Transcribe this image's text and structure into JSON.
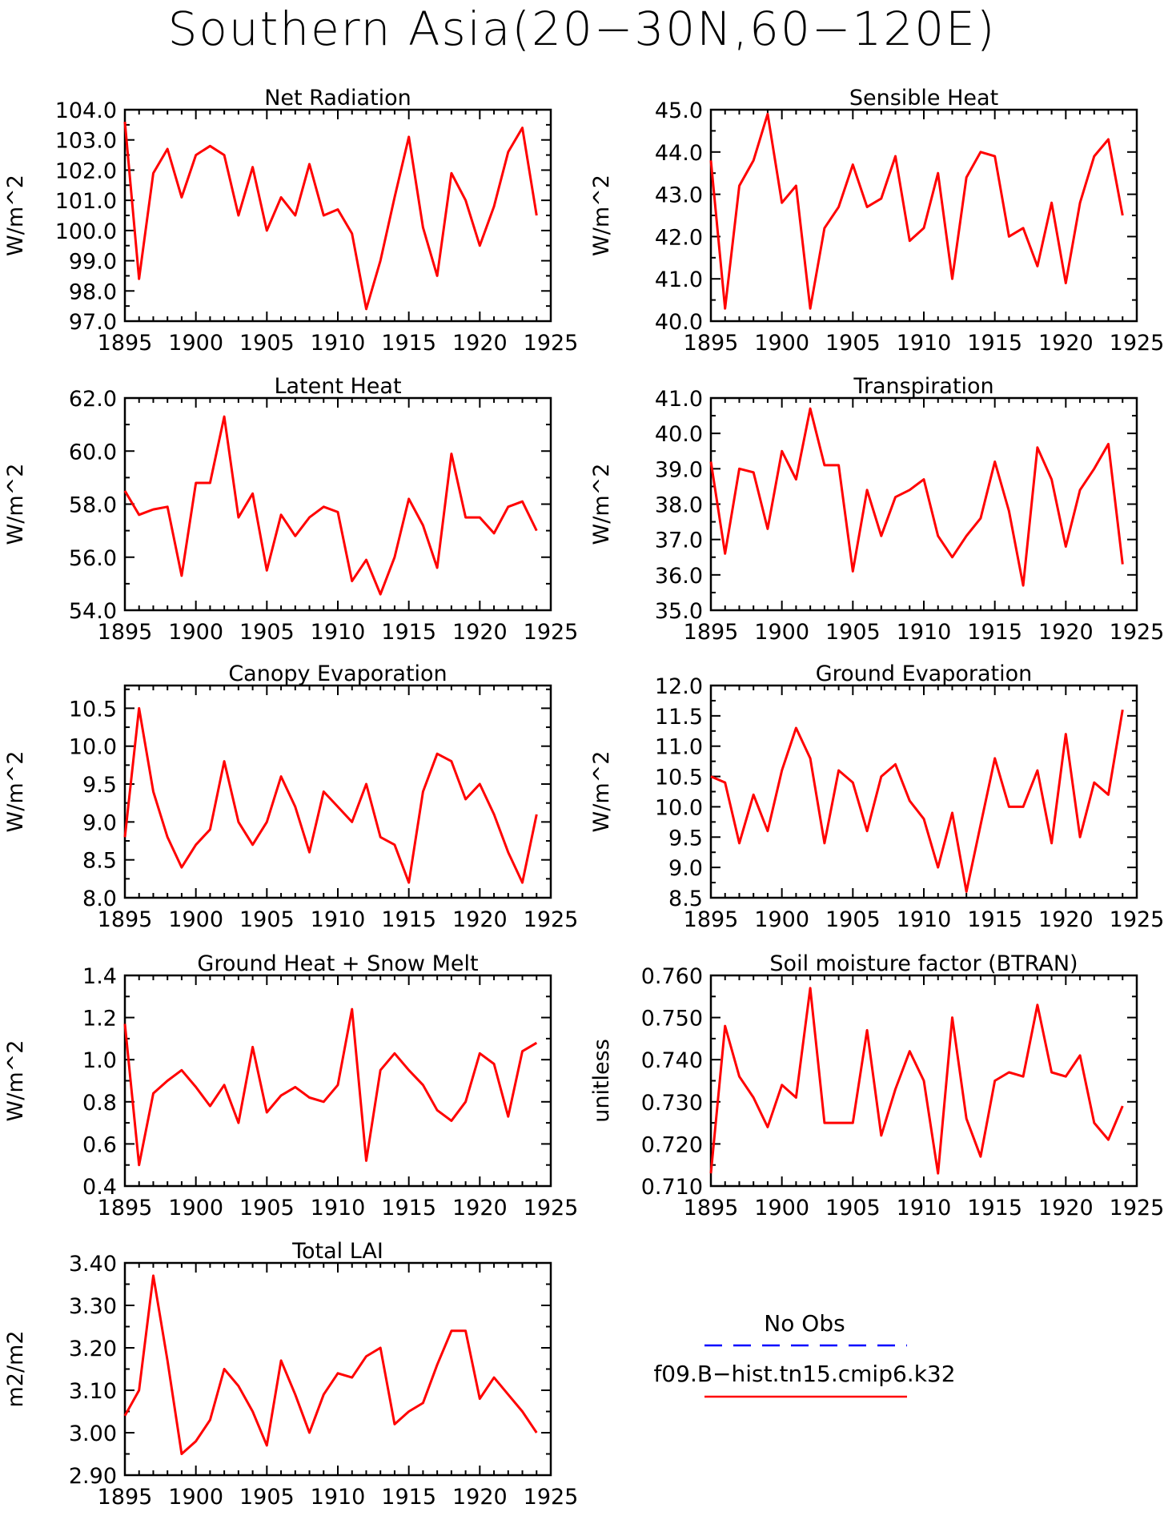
{
  "title": "Southern Asia(20−30N,60−120E)",
  "colors": {
    "model_line": "#ff0000",
    "obs_line": "#0000ff",
    "axis": "#000000"
  },
  "legend": {
    "obs_label": "No Obs",
    "model_label": "f09.B−hist.tn15.cmip6.k32"
  },
  "chart_data": [
    {
      "type": "line",
      "title": "Net Radiation",
      "ylabel": "W/m^2",
      "xlim": [
        1895,
        1925
      ],
      "ylim": [
        97,
        104
      ],
      "yticks": [
        97,
        98,
        99,
        100,
        101,
        102,
        103,
        104
      ],
      "ytick_labels": [
        "97.0",
        "98.0",
        "99.0",
        "100.0",
        "101.0",
        "102.0",
        "103.0",
        "104.0"
      ],
      "xticks": [
        1895,
        1900,
        1905,
        1910,
        1915,
        1920,
        1925
      ],
      "series": [
        {
          "name": "f09.B−hist.tn15.cmip6.k32",
          "x": [
            1895,
            1896,
            1897,
            1898,
            1899,
            1900,
            1901,
            1902,
            1903,
            1904,
            1905,
            1906,
            1907,
            1908,
            1909,
            1910,
            1911,
            1912,
            1913,
            1914,
            1915,
            1916,
            1917,
            1918,
            1919,
            1920,
            1921,
            1922,
            1923,
            1924
          ],
          "y": [
            103.6,
            98.4,
            101.9,
            102.7,
            101.1,
            102.5,
            102.8,
            102.5,
            100.5,
            102.1,
            100.0,
            101.1,
            100.5,
            102.2,
            100.5,
            100.7,
            99.9,
            97.4,
            99.0,
            101.1,
            103.1,
            100.1,
            98.5,
            101.9,
            101.0,
            99.5,
            100.8,
            102.6,
            103.4,
            100.5
          ]
        }
      ]
    },
    {
      "type": "line",
      "title": "Sensible Heat",
      "ylabel": "W/m^2",
      "xlim": [
        1895,
        1925
      ],
      "ylim": [
        40,
        45
      ],
      "yticks": [
        40,
        41,
        42,
        43,
        44,
        45
      ],
      "ytick_labels": [
        "40.0",
        "41.0",
        "42.0",
        "43.0",
        "44.0",
        "45.0"
      ],
      "xticks": [
        1895,
        1900,
        1905,
        1910,
        1915,
        1920,
        1925
      ],
      "series": [
        {
          "name": "f09.B−hist.tn15.cmip6.k32",
          "x": [
            1895,
            1896,
            1897,
            1898,
            1899,
            1900,
            1901,
            1902,
            1903,
            1904,
            1905,
            1906,
            1907,
            1908,
            1909,
            1910,
            1911,
            1912,
            1913,
            1914,
            1915,
            1916,
            1917,
            1918,
            1919,
            1920,
            1921,
            1922,
            1923,
            1924
          ],
          "y": [
            43.8,
            40.3,
            43.2,
            43.8,
            44.9,
            42.8,
            43.2,
            40.3,
            42.2,
            42.7,
            43.7,
            42.7,
            42.9,
            43.9,
            41.9,
            42.2,
            43.5,
            41.0,
            43.4,
            44.0,
            43.9,
            42.0,
            42.2,
            41.3,
            42.8,
            40.9,
            42.8,
            43.9,
            44.3,
            42.5
          ]
        }
      ]
    },
    {
      "type": "line",
      "title": "Latent Heat",
      "ylabel": "W/m^2",
      "xlim": [
        1895,
        1925
      ],
      "ylim": [
        54,
        62
      ],
      "yticks": [
        54,
        56,
        58,
        60,
        62
      ],
      "ytick_labels": [
        "54.0",
        "56.0",
        "58.0",
        "60.0",
        "62.0"
      ],
      "xticks": [
        1895,
        1900,
        1905,
        1910,
        1915,
        1920,
        1925
      ],
      "series": [
        {
          "name": "f09.B−hist.tn15.cmip6.k32",
          "x": [
            1895,
            1896,
            1897,
            1898,
            1899,
            1900,
            1901,
            1902,
            1903,
            1904,
            1905,
            1906,
            1907,
            1908,
            1909,
            1910,
            1911,
            1912,
            1913,
            1914,
            1915,
            1916,
            1917,
            1918,
            1919,
            1920,
            1921,
            1922,
            1923,
            1924
          ],
          "y": [
            58.5,
            57.6,
            57.8,
            57.9,
            55.3,
            58.8,
            58.8,
            61.3,
            57.5,
            58.4,
            55.5,
            57.6,
            56.8,
            57.5,
            57.9,
            57.7,
            55.1,
            55.9,
            54.6,
            56.0,
            58.2,
            57.2,
            55.6,
            59.9,
            57.5,
            57.5,
            56.9,
            57.9,
            58.1,
            57.0
          ]
        }
      ]
    },
    {
      "type": "line",
      "title": "Transpiration",
      "ylabel": "W/m^2",
      "xlim": [
        1895,
        1925
      ],
      "ylim": [
        35,
        41
      ],
      "yticks": [
        35,
        36,
        37,
        38,
        39,
        40,
        41
      ],
      "ytick_labels": [
        "35.0",
        "36.0",
        "37.0",
        "38.0",
        "39.0",
        "40.0",
        "41.0"
      ],
      "xticks": [
        1895,
        1900,
        1905,
        1910,
        1915,
        1920,
        1925
      ],
      "series": [
        {
          "name": "f09.B−hist.tn15.cmip6.k32",
          "x": [
            1895,
            1896,
            1897,
            1898,
            1899,
            1900,
            1901,
            1902,
            1903,
            1904,
            1905,
            1906,
            1907,
            1908,
            1909,
            1910,
            1911,
            1912,
            1913,
            1914,
            1915,
            1916,
            1917,
            1918,
            1919,
            1920,
            1921,
            1922,
            1923,
            1924
          ],
          "y": [
            39.2,
            36.6,
            39.0,
            38.9,
            37.3,
            39.5,
            38.7,
            40.7,
            39.1,
            39.1,
            36.1,
            38.4,
            37.1,
            38.2,
            38.4,
            38.7,
            37.1,
            36.5,
            37.1,
            37.6,
            39.2,
            37.8,
            35.7,
            39.6,
            38.7,
            36.8,
            38.4,
            39.0,
            39.7,
            36.3
          ]
        }
      ]
    },
    {
      "type": "line",
      "title": "Canopy Evaporation",
      "ylabel": "W/m^2",
      "xlim": [
        1895,
        1925
      ],
      "ylim": [
        8,
        10.8
      ],
      "yticks": [
        8,
        8.5,
        9,
        9.5,
        10,
        10.5
      ],
      "ytick_labels": [
        "8.0",
        "8.5",
        "9.0",
        "9.5",
        "10.0",
        "10.5"
      ],
      "xticks": [
        1895,
        1900,
        1905,
        1910,
        1915,
        1920,
        1925
      ],
      "series": [
        {
          "name": "f09.B−hist.tn15.cmip6.k32",
          "x": [
            1895,
            1896,
            1897,
            1898,
            1899,
            1900,
            1901,
            1902,
            1903,
            1904,
            1905,
            1906,
            1907,
            1908,
            1909,
            1910,
            1911,
            1912,
            1913,
            1914,
            1915,
            1916,
            1917,
            1918,
            1919,
            1920,
            1921,
            1922,
            1923,
            1924
          ],
          "y": [
            8.8,
            10.5,
            9.4,
            8.8,
            8.4,
            8.7,
            8.9,
            9.8,
            9.0,
            8.7,
            9.0,
            9.6,
            9.2,
            8.6,
            9.4,
            9.2,
            9.0,
            9.5,
            8.8,
            8.7,
            8.2,
            9.4,
            9.9,
            9.8,
            9.3,
            9.5,
            9.1,
            8.6,
            8.2,
            9.1
          ]
        }
      ]
    },
    {
      "type": "line",
      "title": "Ground Evaporation",
      "ylabel": "W/m^2",
      "xlim": [
        1895,
        1925
      ],
      "ylim": [
        8.5,
        12
      ],
      "yticks": [
        8.5,
        9,
        9.5,
        10,
        10.5,
        11,
        11.5,
        12
      ],
      "ytick_labels": [
        "8.5",
        "9.0",
        "9.5",
        "10.0",
        "10.5",
        "11.0",
        "11.5",
        "12.0"
      ],
      "xticks": [
        1895,
        1900,
        1905,
        1910,
        1915,
        1920,
        1925
      ],
      "series": [
        {
          "name": "f09.B−hist.tn15.cmip6.k32",
          "x": [
            1895,
            1896,
            1897,
            1898,
            1899,
            1900,
            1901,
            1902,
            1903,
            1904,
            1905,
            1906,
            1907,
            1908,
            1909,
            1910,
            1911,
            1912,
            1913,
            1914,
            1915,
            1916,
            1917,
            1918,
            1919,
            1920,
            1921,
            1922,
            1923,
            1924
          ],
          "y": [
            10.5,
            10.4,
            9.4,
            10.2,
            9.6,
            10.6,
            11.3,
            10.8,
            9.4,
            10.6,
            10.4,
            9.6,
            10.5,
            10.7,
            10.1,
            9.8,
            9.0,
            9.9,
            8.6,
            9.7,
            10.8,
            10.0,
            10.0,
            10.6,
            9.4,
            11.2,
            9.5,
            10.4,
            10.2,
            11.6
          ]
        }
      ]
    },
    {
      "type": "line",
      "title": "Ground Heat + Snow Melt",
      "ylabel": "W/m^2",
      "xlim": [
        1895,
        1925
      ],
      "ylim": [
        0.4,
        1.4
      ],
      "yticks": [
        0.4,
        0.6,
        0.8,
        1.0,
        1.2,
        1.4
      ],
      "ytick_labels": [
        "0.4",
        "0.6",
        "0.8",
        "1.0",
        "1.2",
        "1.4"
      ],
      "xticks": [
        1895,
        1900,
        1905,
        1910,
        1915,
        1920,
        1925
      ],
      "series": [
        {
          "name": "f09.B−hist.tn15.cmip6.k32",
          "x": [
            1895,
            1896,
            1897,
            1898,
            1899,
            1900,
            1901,
            1902,
            1903,
            1904,
            1905,
            1906,
            1907,
            1908,
            1909,
            1910,
            1911,
            1912,
            1913,
            1914,
            1915,
            1916,
            1917,
            1918,
            1919,
            1920,
            1921,
            1922,
            1923,
            1924
          ],
          "y": [
            1.17,
            0.5,
            0.84,
            0.9,
            0.95,
            0.87,
            0.78,
            0.88,
            0.7,
            1.06,
            0.75,
            0.83,
            0.87,
            0.82,
            0.8,
            0.88,
            1.24,
            0.52,
            0.95,
            1.03,
            0.95,
            0.88,
            0.76,
            0.71,
            0.8,
            1.03,
            0.98,
            0.73,
            1.04,
            1.08
          ]
        }
      ]
    },
    {
      "type": "line",
      "title": "Soil moisture factor (BTRAN)",
      "ylabel": "unitless",
      "xlim": [
        1895,
        1925
      ],
      "ylim": [
        0.71,
        0.76
      ],
      "yticks": [
        0.71,
        0.72,
        0.73,
        0.74,
        0.75,
        0.76
      ],
      "ytick_labels": [
        "0.710",
        "0.720",
        "0.730",
        "0.740",
        "0.750",
        "0.760"
      ],
      "xticks": [
        1895,
        1900,
        1905,
        1910,
        1915,
        1920,
        1925
      ],
      "series": [
        {
          "name": "f09.B−hist.tn15.cmip6.k32",
          "x": [
            1895,
            1896,
            1897,
            1898,
            1899,
            1900,
            1901,
            1902,
            1903,
            1904,
            1905,
            1906,
            1907,
            1908,
            1909,
            1910,
            1911,
            1912,
            1913,
            1914,
            1915,
            1916,
            1917,
            1918,
            1919,
            1920,
            1921,
            1922,
            1923,
            1924
          ],
          "y": [
            0.713,
            0.748,
            0.736,
            0.731,
            0.724,
            0.734,
            0.731,
            0.757,
            0.725,
            0.725,
            0.725,
            0.747,
            0.722,
            0.733,
            0.742,
            0.735,
            0.713,
            0.75,
            0.726,
            0.717,
            0.735,
            0.737,
            0.736,
            0.753,
            0.737,
            0.736,
            0.741,
            0.725,
            0.721,
            0.729
          ]
        }
      ]
    },
    {
      "type": "line",
      "title": "Total LAI",
      "ylabel": "m2/m2",
      "xlim": [
        1895,
        1925
      ],
      "ylim": [
        2.9,
        3.4
      ],
      "yticks": [
        2.9,
        3.0,
        3.1,
        3.2,
        3.3,
        3.4
      ],
      "ytick_labels": [
        "2.90",
        "3.00",
        "3.10",
        "3.20",
        "3.30",
        "3.40"
      ],
      "xticks": [
        1895,
        1900,
        1905,
        1910,
        1915,
        1920,
        1925
      ],
      "series": [
        {
          "name": "f09.B−hist.tn15.cmip6.k32",
          "x": [
            1895,
            1896,
            1897,
            1898,
            1899,
            1900,
            1901,
            1902,
            1903,
            1904,
            1905,
            1906,
            1907,
            1908,
            1909,
            1910,
            1911,
            1912,
            1913,
            1914,
            1915,
            1916,
            1917,
            1918,
            1919,
            1920,
            1921,
            1922,
            1923,
            1924
          ],
          "y": [
            3.04,
            3.1,
            3.37,
            3.17,
            2.95,
            2.98,
            3.03,
            3.15,
            3.11,
            3.05,
            2.97,
            3.17,
            3.09,
            3.0,
            3.09,
            3.14,
            3.13,
            3.18,
            3.2,
            3.02,
            3.05,
            3.07,
            3.16,
            3.24,
            3.24,
            3.08,
            3.13,
            3.09,
            3.05,
            3.0
          ]
        }
      ]
    }
  ]
}
